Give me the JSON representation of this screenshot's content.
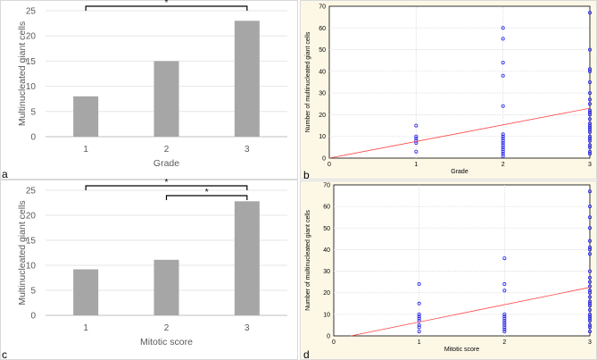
{
  "chart_data": [
    {
      "panel": "a",
      "type": "bar",
      "categories": [
        "1",
        "2",
        "3"
      ],
      "values": [
        8,
        15,
        23
      ],
      "ylabel": "Multinucleated giant cells",
      "xlabel": "Grade",
      "ylim": [
        0,
        25
      ],
      "yticks": [
        "0",
        "5",
        "10",
        "15",
        "20",
        "25"
      ],
      "bar_color": "#a6a6a6",
      "significance": [
        {
          "from": 0,
          "to": 2,
          "label": "*"
        }
      ]
    },
    {
      "panel": "b",
      "type": "scatter",
      "xlabel": "Grade",
      "ylabel": "Number of multinucleated giant cells",
      "xlim": [
        0,
        3
      ],
      "ylim": [
        0,
        70
      ],
      "xticks": [
        "0",
        "1",
        "2",
        "3"
      ],
      "yticks": [
        "0",
        "10",
        "20",
        "30",
        "40",
        "50",
        "60",
        "70"
      ],
      "point_color": "#2222ee",
      "line_color": "#ff4444",
      "points": [
        [
          1,
          15
        ],
        [
          1,
          10
        ],
        [
          1,
          9
        ],
        [
          1,
          8
        ],
        [
          1,
          7
        ],
        [
          1,
          3
        ],
        [
          2,
          60
        ],
        [
          2,
          55
        ],
        [
          2,
          44
        ],
        [
          2,
          38
        ],
        [
          2,
          24
        ],
        [
          2,
          11
        ],
        [
          2,
          10
        ],
        [
          2,
          9
        ],
        [
          2,
          8
        ],
        [
          2,
          7
        ],
        [
          2,
          6
        ],
        [
          2,
          5
        ],
        [
          2,
          4
        ],
        [
          2,
          3
        ],
        [
          2,
          2
        ],
        [
          2,
          1
        ],
        [
          3,
          67
        ],
        [
          3,
          50
        ],
        [
          3,
          41
        ],
        [
          3,
          40
        ],
        [
          3,
          35
        ],
        [
          3,
          30
        ],
        [
          3,
          27
        ],
        [
          3,
          25
        ],
        [
          3,
          22
        ],
        [
          3,
          21
        ],
        [
          3,
          20
        ],
        [
          3,
          18
        ],
        [
          3,
          16
        ],
        [
          3,
          15
        ],
        [
          3,
          14
        ],
        [
          3,
          13
        ],
        [
          3,
          12
        ],
        [
          3,
          10
        ],
        [
          3,
          9
        ],
        [
          3,
          8
        ],
        [
          3,
          6
        ],
        [
          3,
          5
        ],
        [
          3,
          3
        ],
        [
          3,
          2
        ]
      ],
      "fit": {
        "x": [
          0,
          3
        ],
        "y": [
          0,
          23
        ]
      }
    },
    {
      "panel": "c",
      "type": "bar",
      "categories": [
        "1",
        "2",
        "3"
      ],
      "values": [
        9.2,
        11.1,
        22.8
      ],
      "ylabel": "Multinucleated giant cells",
      "xlabel": "Mitotic score",
      "ylim": [
        0,
        25
      ],
      "yticks": [
        "0",
        "5",
        "10",
        "15",
        "20",
        "25"
      ],
      "bar_color": "#a6a6a6",
      "significance": [
        {
          "from": 0,
          "to": 2,
          "label": "*"
        },
        {
          "from": 1,
          "to": 2,
          "label": "*"
        }
      ]
    },
    {
      "panel": "d",
      "type": "scatter",
      "xlabel": "Mitotic score",
      "ylabel": "Number of multinucleated giant cells",
      "xlim": [
        0,
        3
      ],
      "ylim": [
        0,
        70
      ],
      "xticks": [
        "0",
        "1",
        "2",
        "3"
      ],
      "yticks": [
        "0",
        "10",
        "20",
        "30",
        "40",
        "50",
        "60",
        "70"
      ],
      "point_color": "#2222ee",
      "line_color": "#ff4444",
      "points": [
        [
          1,
          24
        ],
        [
          1,
          15
        ],
        [
          1,
          10
        ],
        [
          1,
          9
        ],
        [
          1,
          8
        ],
        [
          1,
          7
        ],
        [
          1,
          5
        ],
        [
          1,
          4
        ],
        [
          1,
          2
        ],
        [
          2,
          36
        ],
        [
          2,
          24
        ],
        [
          2,
          21
        ],
        [
          2,
          10
        ],
        [
          2,
          9
        ],
        [
          2,
          8
        ],
        [
          2,
          7
        ],
        [
          2,
          6
        ],
        [
          2,
          5
        ],
        [
          2,
          4
        ],
        [
          2,
          3
        ],
        [
          2,
          2
        ],
        [
          3,
          67
        ],
        [
          3,
          60
        ],
        [
          3,
          55
        ],
        [
          3,
          50
        ],
        [
          3,
          44
        ],
        [
          3,
          41
        ],
        [
          3,
          40
        ],
        [
          3,
          38
        ],
        [
          3,
          30
        ],
        [
          3,
          27
        ],
        [
          3,
          25
        ],
        [
          3,
          23
        ],
        [
          3,
          21
        ],
        [
          3,
          20
        ],
        [
          3,
          18
        ],
        [
          3,
          16
        ],
        [
          3,
          15
        ],
        [
          3,
          14
        ],
        [
          3,
          12
        ],
        [
          3,
          10
        ],
        [
          3,
          9
        ],
        [
          3,
          8
        ],
        [
          3,
          7
        ],
        [
          3,
          5
        ],
        [
          3,
          4
        ],
        [
          3,
          2
        ]
      ],
      "fit": {
        "x": [
          0.2,
          3
        ],
        "y": [
          0,
          22.5
        ]
      }
    }
  ]
}
